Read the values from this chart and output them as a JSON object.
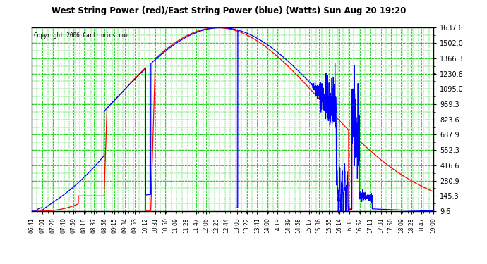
{
  "title": "West String Power (red)/East String Power (blue) (Watts) Sun Aug 20 19:20",
  "copyright": "Copyright 2006 Cartronics.com",
  "yticks": [
    9.6,
    145.3,
    280.9,
    416.6,
    552.3,
    687.9,
    823.6,
    959.3,
    1095.0,
    1230.6,
    1366.3,
    1502.0,
    1637.6
  ],
  "ymin": 9.6,
  "ymax": 1637.6,
  "plot_bg": "#ffffff",
  "grid_color": "#00cc00",
  "red_color": "#ff0000",
  "blue_color": "#0000ff",
  "xtick_labels": [
    "06:41",
    "07:01",
    "07:20",
    "07:40",
    "07:59",
    "08:18",
    "08:37",
    "08:56",
    "09:15",
    "09:34",
    "09:53",
    "10:12",
    "10:31",
    "10:50",
    "11:09",
    "11:28",
    "11:47",
    "12:06",
    "12:25",
    "12:44",
    "13:03",
    "13:22",
    "13:41",
    "14:00",
    "14:19",
    "14:39",
    "14:58",
    "15:17",
    "15:36",
    "15:55",
    "16:14",
    "16:33",
    "16:52",
    "17:11",
    "17:31",
    "17:50",
    "18:09",
    "18:28",
    "18:47",
    "19:09"
  ]
}
